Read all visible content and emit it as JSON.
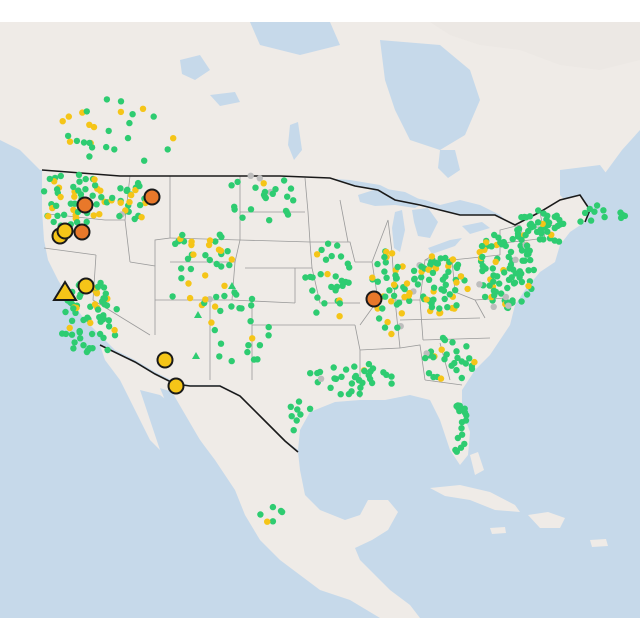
{
  "map": {
    "colors": {
      "water": "#c6d9ea",
      "land": "#efebe7",
      "land_other": "#ece8e4",
      "state_border": "#9a9a9a",
      "national_border": "#1a1a1a",
      "good": "#2ecc71",
      "moderate": "#f5c518",
      "unhealthy_sensitive": "#e8782a",
      "no_data": "#bdbdbd",
      "marker_outline": "#1a1a1a"
    },
    "legend": []
  }
}
